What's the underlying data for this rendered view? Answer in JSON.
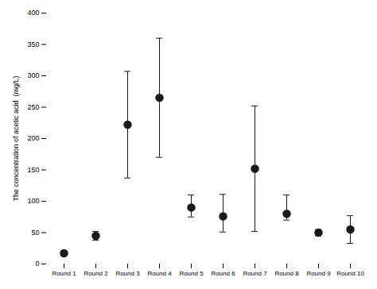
{
  "chart_data": {
    "type": "scatter",
    "categories": [
      "Round 1",
      "Round 2",
      "Round 3",
      "Round 4",
      "Round 5",
      "Round 6",
      "Round 7",
      "Round 8",
      "Round 9",
      "Round 10"
    ],
    "values": [
      17,
      45,
      222,
      265,
      90,
      76,
      152,
      80,
      50,
      55
    ],
    "yerr_lower": [
      4,
      7,
      85,
      95,
      15,
      25,
      100,
      10,
      5,
      22
    ],
    "yerr_upper": [
      4,
      7,
      85,
      95,
      20,
      35,
      100,
      30,
      5,
      22
    ],
    "ylabel": "The concentration of acetic acid  (mg/L)",
    "ylim": [
      0,
      400
    ],
    "yticks": [
      0,
      50,
      100,
      150,
      200,
      250,
      300,
      350,
      400
    ],
    "color": "#1a1a1a",
    "marker": "circle",
    "grid": false
  }
}
